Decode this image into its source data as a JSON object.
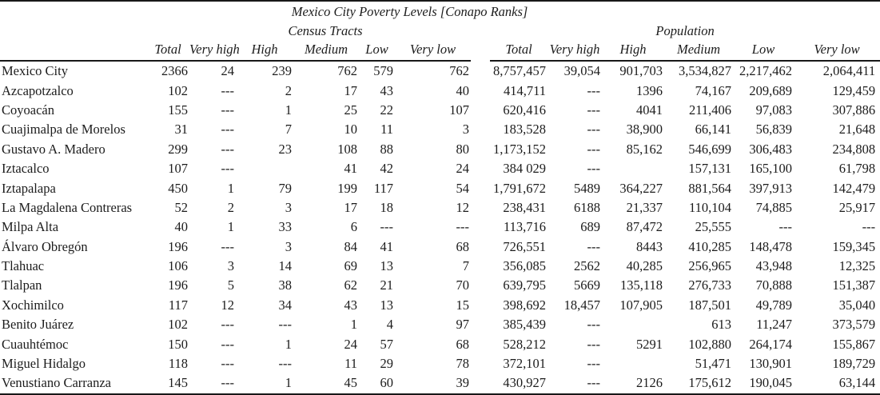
{
  "chart_data": {
    "type": "table",
    "title": "Mexico City Poverty Levels [Conapo Ranks]",
    "column_groups": [
      "Census Tracts",
      "Population"
    ],
    "columns": [
      "Total",
      "Very high",
      "High",
      "Medium",
      "Low",
      "Very low"
    ],
    "rows": [
      {
        "label": "Mexico City",
        "census_tracts": [
          "2366",
          "24",
          "239",
          "762",
          "579",
          "762"
        ],
        "population": [
          "8,757,457",
          "39,054",
          "901,703",
          "3,534,827",
          "2,217,462",
          "2,064,411"
        ]
      },
      {
        "label": "Azcapotzalco",
        "census_tracts": [
          "102",
          "---",
          "2",
          "17",
          "43",
          "40"
        ],
        "population": [
          "414,711",
          "---",
          "1396",
          "74,167",
          "209,689",
          "129,459"
        ]
      },
      {
        "label": "Coyoacán",
        "census_tracts": [
          "155",
          "---",
          "1",
          "25",
          "22",
          "107"
        ],
        "population": [
          "620,416",
          "---",
          "4041",
          "211,406",
          "97,083",
          "307,886"
        ]
      },
      {
        "label": "Cuajimalpa de Morelos",
        "census_tracts": [
          "31",
          "---",
          "7",
          "10",
          "11",
          "3"
        ],
        "population": [
          "183,528",
          "---",
          "38,900",
          "66,141",
          "56,839",
          "21,648"
        ]
      },
      {
        "label": "Gustavo A. Madero",
        "census_tracts": [
          "299",
          "---",
          "23",
          "108",
          "88",
          "80"
        ],
        "population": [
          "1,173,152",
          "---",
          "85,162",
          "546,699",
          "306,483",
          "234,808"
        ]
      },
      {
        "label": "Iztacalco",
        "census_tracts": [
          "107",
          "---",
          "",
          "41",
          "42",
          "24"
        ],
        "population": [
          "384 029",
          "---",
          "",
          "157,131",
          "165,100",
          "61,798"
        ]
      },
      {
        "label": "Iztapalapa",
        "census_tracts": [
          "450",
          "1",
          "79",
          "199",
          "117",
          "54"
        ],
        "population": [
          "1,791,672",
          "5489",
          "364,227",
          "881,564",
          "397,913",
          "142,479"
        ]
      },
      {
        "label": "La Magdalena Contreras",
        "census_tracts": [
          "52",
          "2",
          "3",
          "17",
          "18",
          "12"
        ],
        "population": [
          "238,431",
          "6188",
          "21,337",
          "110,104",
          "74,885",
          "25,917"
        ]
      },
      {
        "label": "Milpa Alta",
        "census_tracts": [
          "40",
          "1",
          "33",
          "6",
          "---",
          "---"
        ],
        "population": [
          "113,716",
          "689",
          "87,472",
          "25,555",
          "---",
          "---"
        ]
      },
      {
        "label": "Álvaro Obregón",
        "census_tracts": [
          "196",
          "---",
          "3",
          "84",
          "41",
          "68"
        ],
        "population": [
          "726,551",
          "---",
          "8443",
          "410,285",
          "148,478",
          "159,345"
        ]
      },
      {
        "label": "Tlahuac",
        "census_tracts": [
          "106",
          "3",
          "14",
          "69",
          "13",
          "7"
        ],
        "population": [
          "356,085",
          "2562",
          "40,285",
          "256,965",
          "43,948",
          "12,325"
        ]
      },
      {
        "label": "Tlalpan",
        "census_tracts": [
          "196",
          "5",
          "38",
          "62",
          "21",
          "70"
        ],
        "population": [
          "639,795",
          "5669",
          "135,118",
          "276,733",
          "70,888",
          "151,387"
        ]
      },
      {
        "label": "Xochimilco",
        "census_tracts": [
          "117",
          "12",
          "34",
          "43",
          "13",
          "15"
        ],
        "population": [
          "398,692",
          "18,457",
          "107,905",
          "187,501",
          "49,789",
          "35,040"
        ]
      },
      {
        "label": "Benito Juárez",
        "census_tracts": [
          "102",
          "---",
          "---",
          "1",
          "4",
          "97"
        ],
        "population": [
          "385,439",
          "---",
          "",
          "613",
          "11,247",
          "373,579"
        ]
      },
      {
        "label": "Cuauhtémoc",
        "census_tracts": [
          "150",
          "---",
          "1",
          "24",
          "57",
          "68"
        ],
        "population": [
          "528,212",
          "---",
          "5291",
          "102,880",
          "264,174",
          "155,867"
        ]
      },
      {
        "label": "Miguel Hidalgo",
        "census_tracts": [
          "118",
          "---",
          "---",
          "11",
          "29",
          "78"
        ],
        "population": [
          "372,101",
          "---",
          "",
          "51,471",
          "130,901",
          "189,729"
        ]
      },
      {
        "label": "Venustiano Carranza",
        "census_tracts": [
          "145",
          "---",
          "1",
          "45",
          "60",
          "39"
        ],
        "population": [
          "430,927",
          "---",
          "2126",
          "175,612",
          "190,045",
          "63,144"
        ]
      }
    ]
  }
}
